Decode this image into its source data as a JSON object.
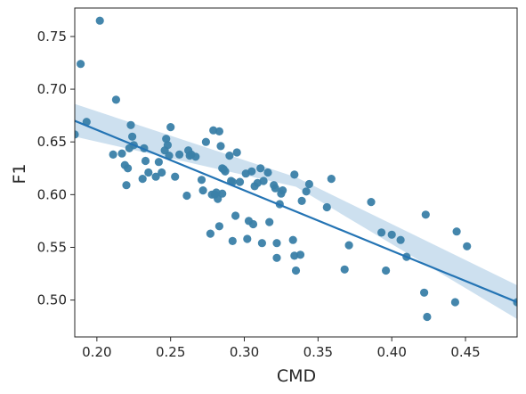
{
  "chart_data": {
    "type": "scatter",
    "title": "",
    "xlabel": "CMD",
    "ylabel": "F1",
    "xlim": [
      0.185,
      0.485
    ],
    "ylim": [
      0.465,
      0.777
    ],
    "xticks": [
      0.2,
      0.25,
      0.3,
      0.35,
      0.4,
      0.45
    ],
    "xtick_labels": [
      "0.20",
      "0.25",
      "0.30",
      "0.35",
      "0.40",
      "0.45"
    ],
    "yticks": [
      0.5,
      0.55,
      0.6,
      0.65,
      0.7,
      0.75
    ],
    "ytick_labels": [
      "0.50",
      "0.55",
      "0.60",
      "0.65",
      "0.70",
      "0.75"
    ],
    "grid": false,
    "legend": "none",
    "colors": {
      "points": "#3a7fa8",
      "line": "#2474b4",
      "band": "#bcd6ea"
    },
    "regression": {
      "x": [
        0.185,
        0.485
      ],
      "y": [
        0.67,
        0.498
      ],
      "ci_lower": [
        0.655,
        0.482
      ],
      "ci_upper": [
        0.686,
        0.514
      ],
      "ci_mid": [
        0.335,
        0.612
      ]
    },
    "points": [
      {
        "x": 0.185,
        "y": 0.657
      },
      {
        "x": 0.189,
        "y": 0.724
      },
      {
        "x": 0.193,
        "y": 0.669
      },
      {
        "x": 0.202,
        "y": 0.765
      },
      {
        "x": 0.211,
        "y": 0.638
      },
      {
        "x": 0.213,
        "y": 0.69
      },
      {
        "x": 0.217,
        "y": 0.639
      },
      {
        "x": 0.219,
        "y": 0.628
      },
      {
        "x": 0.22,
        "y": 0.609
      },
      {
        "x": 0.221,
        "y": 0.625
      },
      {
        "x": 0.222,
        "y": 0.644
      },
      {
        "x": 0.223,
        "y": 0.666
      },
      {
        "x": 0.224,
        "y": 0.655
      },
      {
        "x": 0.225,
        "y": 0.647
      },
      {
        "x": 0.231,
        "y": 0.615
      },
      {
        "x": 0.232,
        "y": 0.644
      },
      {
        "x": 0.233,
        "y": 0.632
      },
      {
        "x": 0.235,
        "y": 0.621
      },
      {
        "x": 0.24,
        "y": 0.617
      },
      {
        "x": 0.242,
        "y": 0.631
      },
      {
        "x": 0.244,
        "y": 0.621
      },
      {
        "x": 0.246,
        "y": 0.642
      },
      {
        "x": 0.247,
        "y": 0.653
      },
      {
        "x": 0.248,
        "y": 0.647
      },
      {
        "x": 0.249,
        "y": 0.637
      },
      {
        "x": 0.25,
        "y": 0.664
      },
      {
        "x": 0.253,
        "y": 0.617
      },
      {
        "x": 0.256,
        "y": 0.638
      },
      {
        "x": 0.261,
        "y": 0.599
      },
      {
        "x": 0.262,
        "y": 0.642
      },
      {
        "x": 0.263,
        "y": 0.637
      },
      {
        "x": 0.264,
        "y": 0.638
      },
      {
        "x": 0.267,
        "y": 0.636
      },
      {
        "x": 0.271,
        "y": 0.614
      },
      {
        "x": 0.272,
        "y": 0.604
      },
      {
        "x": 0.274,
        "y": 0.65
      },
      {
        "x": 0.277,
        "y": 0.563
      },
      {
        "x": 0.278,
        "y": 0.6
      },
      {
        "x": 0.279,
        "y": 0.661
      },
      {
        "x": 0.28,
        "y": 0.6
      },
      {
        "x": 0.281,
        "y": 0.602
      },
      {
        "x": 0.282,
        "y": 0.596
      },
      {
        "x": 0.283,
        "y": 0.57
      },
      {
        "x": 0.283,
        "y": 0.66
      },
      {
        "x": 0.284,
        "y": 0.646
      },
      {
        "x": 0.285,
        "y": 0.625
      },
      {
        "x": 0.285,
        "y": 0.601
      },
      {
        "x": 0.286,
        "y": 0.624
      },
      {
        "x": 0.287,
        "y": 0.622
      },
      {
        "x": 0.29,
        "y": 0.637
      },
      {
        "x": 0.291,
        "y": 0.613
      },
      {
        "x": 0.292,
        "y": 0.612
      },
      {
        "x": 0.292,
        "y": 0.556
      },
      {
        "x": 0.294,
        "y": 0.58
      },
      {
        "x": 0.295,
        "y": 0.64
      },
      {
        "x": 0.297,
        "y": 0.612
      },
      {
        "x": 0.301,
        "y": 0.62
      },
      {
        "x": 0.302,
        "y": 0.558
      },
      {
        "x": 0.303,
        "y": 0.575
      },
      {
        "x": 0.305,
        "y": 0.622
      },
      {
        "x": 0.306,
        "y": 0.572
      },
      {
        "x": 0.307,
        "y": 0.608
      },
      {
        "x": 0.309,
        "y": 0.611
      },
      {
        "x": 0.311,
        "y": 0.625
      },
      {
        "x": 0.312,
        "y": 0.554
      },
      {
        "x": 0.313,
        "y": 0.613
      },
      {
        "x": 0.316,
        "y": 0.621
      },
      {
        "x": 0.317,
        "y": 0.574
      },
      {
        "x": 0.32,
        "y": 0.609
      },
      {
        "x": 0.321,
        "y": 0.606
      },
      {
        "x": 0.322,
        "y": 0.554
      },
      {
        "x": 0.322,
        "y": 0.54
      },
      {
        "x": 0.324,
        "y": 0.591
      },
      {
        "x": 0.325,
        "y": 0.601
      },
      {
        "x": 0.326,
        "y": 0.604
      },
      {
        "x": 0.333,
        "y": 0.557
      },
      {
        "x": 0.334,
        "y": 0.542
      },
      {
        "x": 0.334,
        "y": 0.619
      },
      {
        "x": 0.335,
        "y": 0.528
      },
      {
        "x": 0.338,
        "y": 0.543
      },
      {
        "x": 0.339,
        "y": 0.594
      },
      {
        "x": 0.342,
        "y": 0.603
      },
      {
        "x": 0.344,
        "y": 0.61
      },
      {
        "x": 0.356,
        "y": 0.588
      },
      {
        "x": 0.359,
        "y": 0.615
      },
      {
        "x": 0.368,
        "y": 0.529
      },
      {
        "x": 0.371,
        "y": 0.552
      },
      {
        "x": 0.386,
        "y": 0.593
      },
      {
        "x": 0.393,
        "y": 0.564
      },
      {
        "x": 0.396,
        "y": 0.528
      },
      {
        "x": 0.4,
        "y": 0.562
      },
      {
        "x": 0.406,
        "y": 0.557
      },
      {
        "x": 0.41,
        "y": 0.541
      },
      {
        "x": 0.422,
        "y": 0.507
      },
      {
        "x": 0.423,
        "y": 0.581
      },
      {
        "x": 0.424,
        "y": 0.484
      },
      {
        "x": 0.443,
        "y": 0.498
      },
      {
        "x": 0.444,
        "y": 0.565
      },
      {
        "x": 0.451,
        "y": 0.551
      },
      {
        "x": 0.485,
        "y": 0.498
      }
    ]
  }
}
